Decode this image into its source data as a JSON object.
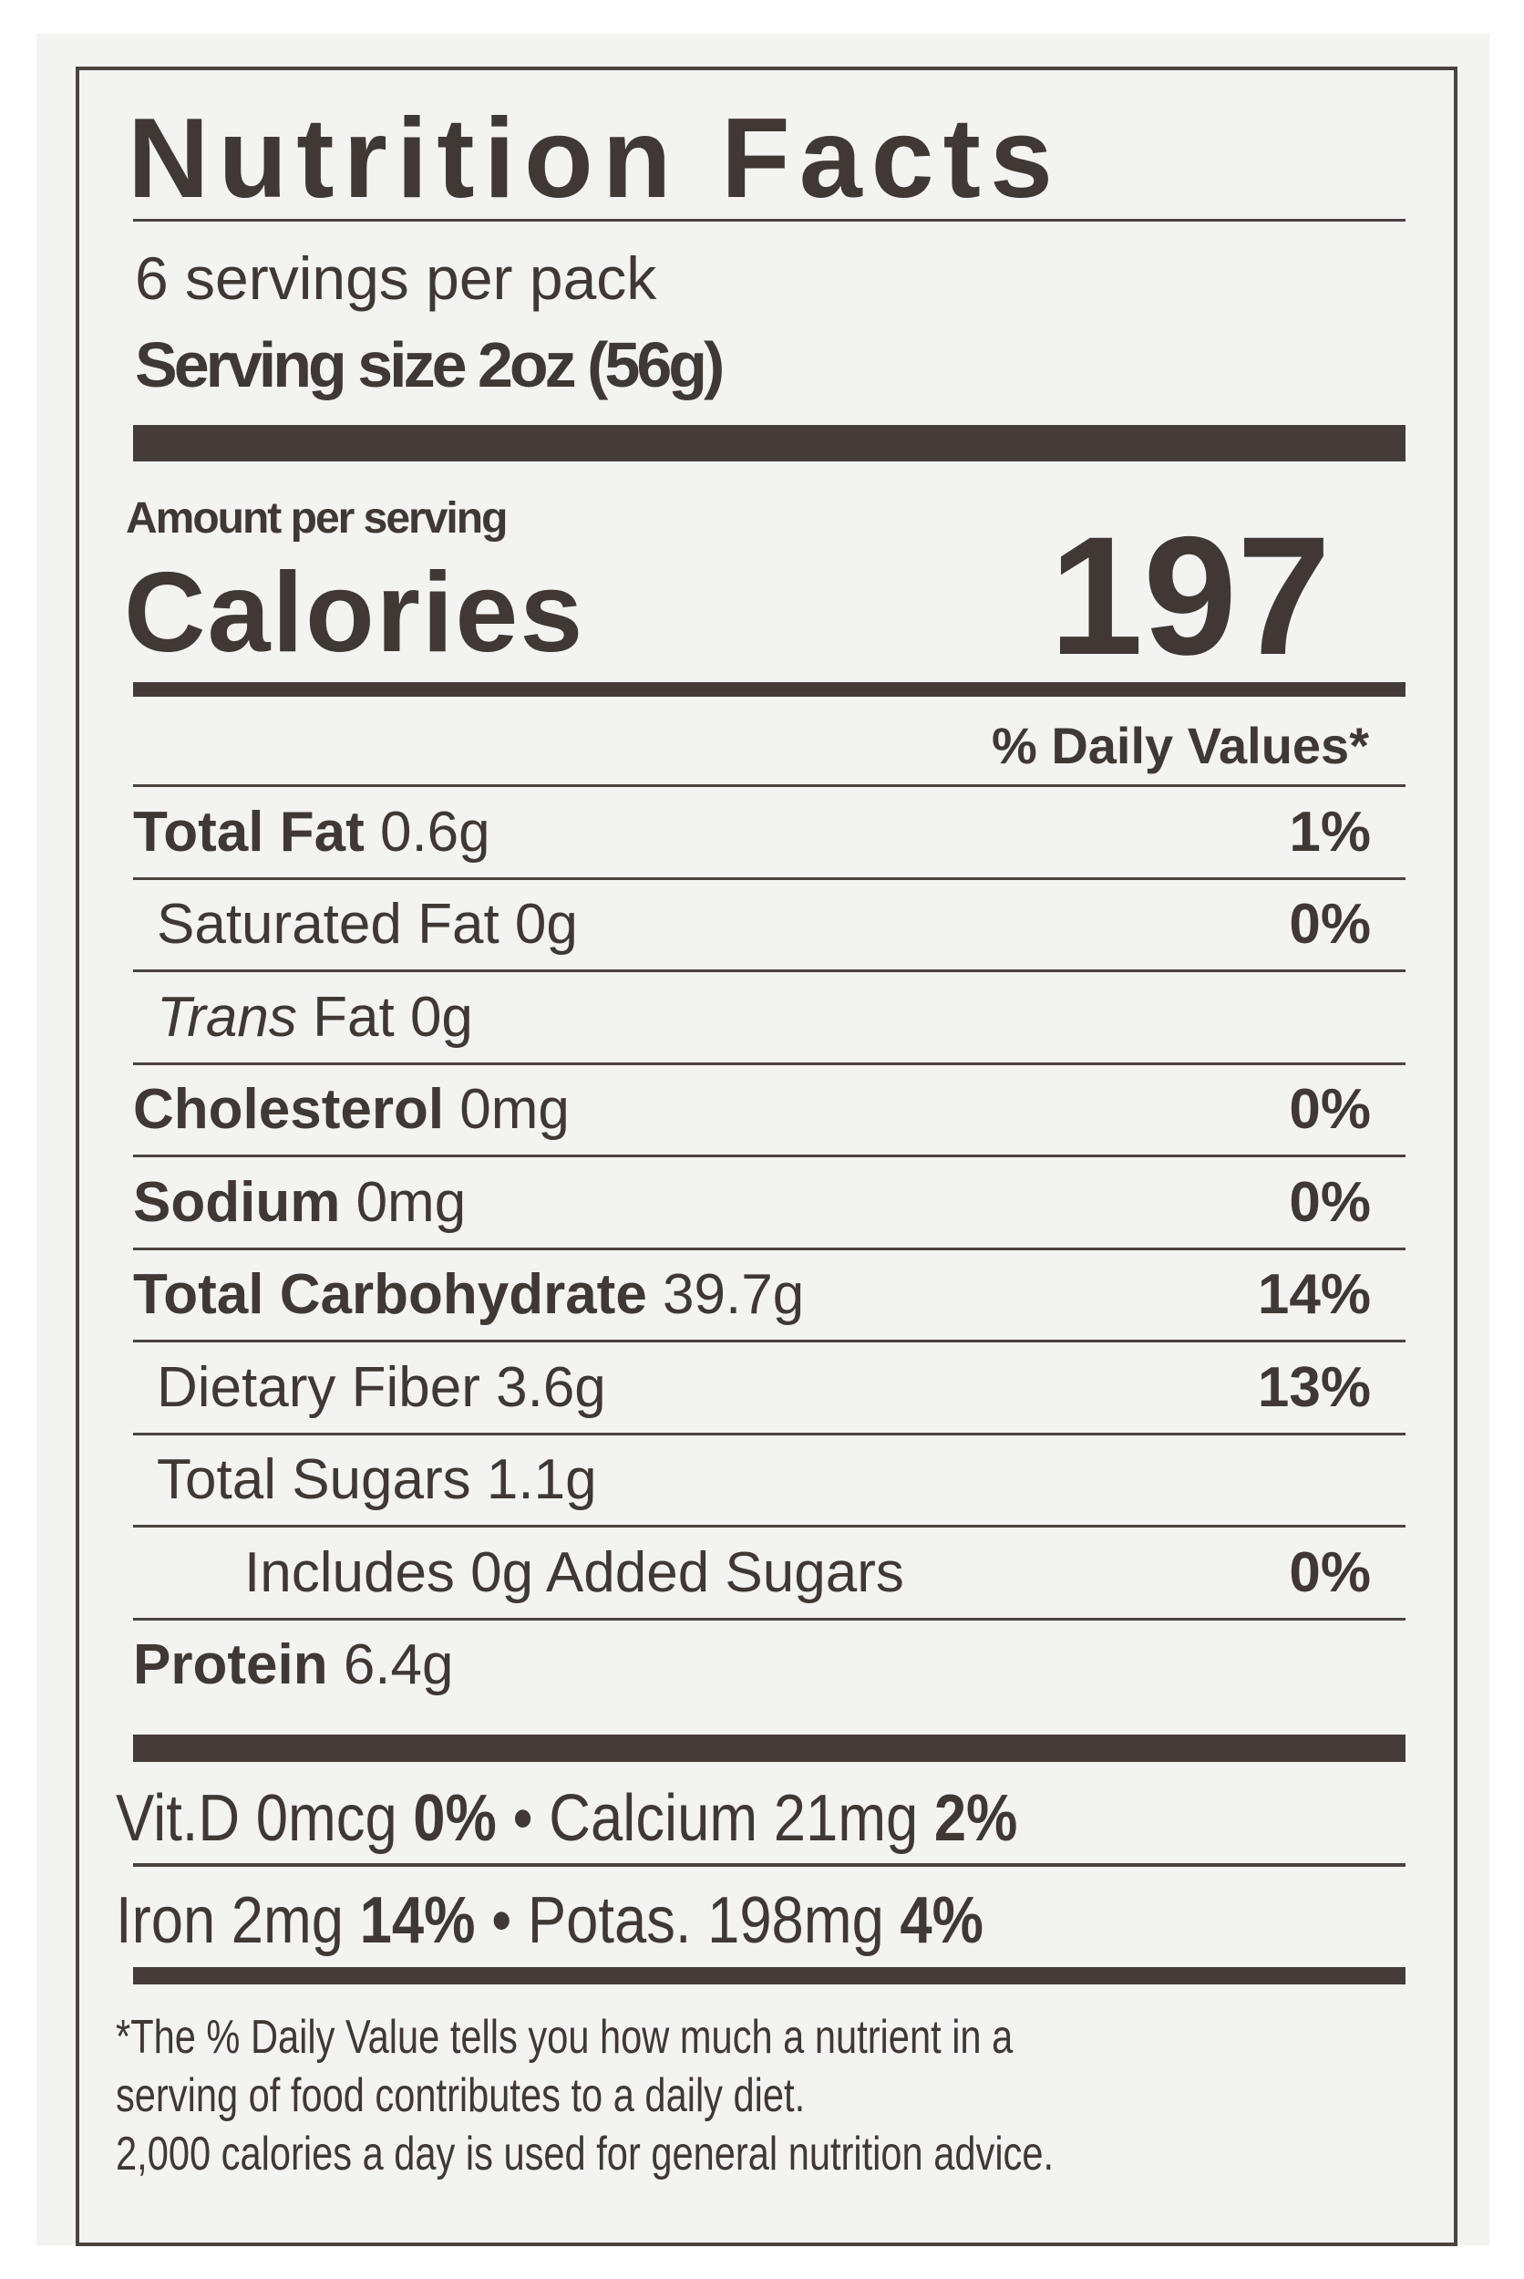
{
  "label": {
    "title": "Nutrition Facts",
    "servings_per_container": "6 servings per pack",
    "serving_size": "Serving size  2oz (56g)",
    "amount_per_serving": "Amount per serving",
    "calories_label": "Calories",
    "calories_value": "197",
    "daily_values_header": "% Daily Values*",
    "nutrients": [
      {
        "name": "Total Fat",
        "amount": "0.6g",
        "dv": "1%",
        "bold": true
      },
      {
        "name": "Saturated Fat",
        "amount": "0g",
        "dv": "0%",
        "bold": false
      },
      {
        "name": "Trans",
        "name_suffix": "Fat",
        "amount": "0g",
        "dv": "",
        "bold": false
      },
      {
        "name": "Cholesterol",
        "amount": "0mg",
        "dv": "0%",
        "bold": true
      },
      {
        "name": "Sodium",
        "amount": "0mg",
        "dv": "0%",
        "bold": true
      },
      {
        "name": "Total Carbohydrate",
        "amount": "39.7g",
        "dv": "14%",
        "bold": true
      },
      {
        "name": "Dietary Fiber",
        "amount": "3.6g",
        "dv": "13%",
        "bold": false
      },
      {
        "name": "Total Sugars",
        "amount": "1.1g",
        "dv": "",
        "bold": false
      },
      {
        "name": "Includes 0g Added Sugars",
        "amount": "",
        "dv": "0%",
        "bold": false
      },
      {
        "name": "Protein",
        "amount": "6.4g",
        "dv": "",
        "bold": true
      }
    ],
    "vitamins": [
      {
        "text1": "Vit.D 0mcg ",
        "pct1": "0%",
        "sep": " • ",
        "text2": "Calcium 21mg ",
        "pct2": "2%"
      },
      {
        "text1": "Iron 2mg ",
        "pct1": "14%",
        "sep": " •  ",
        "text2": "Potas. 198mg ",
        "pct2": "4%"
      }
    ],
    "footnote": [
      "*The % Daily Value tells you how much a nutrient in a",
      "serving of food contributes to a daily diet.",
      "2,000 calories a day is used for general nutrition advice."
    ]
  },
  "colors": {
    "ink": "#3f3834",
    "paper": "#f3f3f1"
  }
}
